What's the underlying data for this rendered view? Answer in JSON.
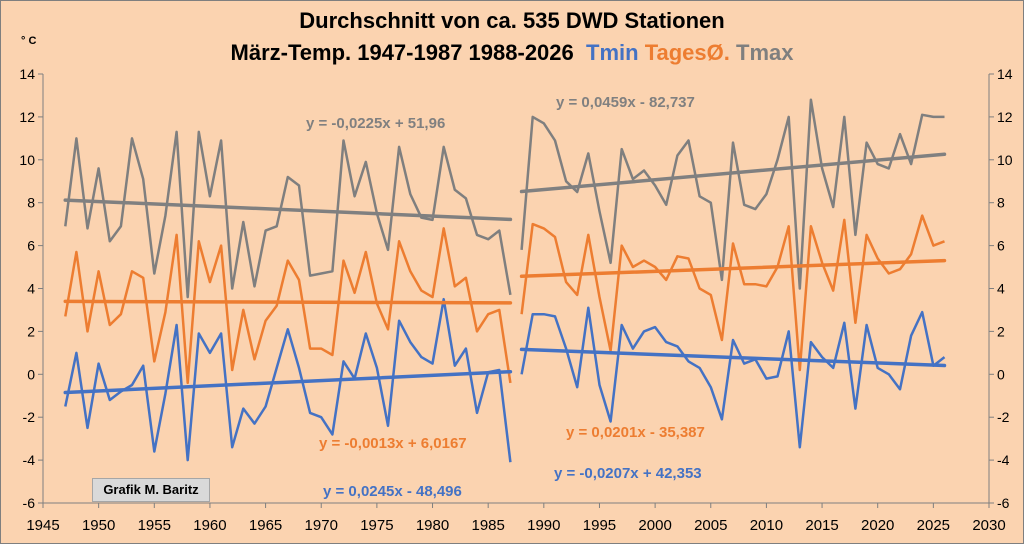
{
  "title": "Durchschnitt von ca. 535 DWD Stationen",
  "subtitle": {
    "lead": "März-Temp. 1947-1987 1988-2026",
    "tmin": "Tmin",
    "mean": "TagesØ.",
    "tmax": "Tmax"
  },
  "credit": "Grafik M. Baritz",
  "colors": {
    "tmin": "#4472c4",
    "mean": "#ed7d31",
    "tmax": "#7f7f7f",
    "background": "#fbd3b0",
    "trend": "#808080"
  },
  "chart_data": {
    "type": "line",
    "ylabel": "° C",
    "xlim": [
      1945,
      2030
    ],
    "ylim": [
      -6,
      14
    ],
    "x_ticks": [
      1945,
      1950,
      1955,
      1960,
      1965,
      1970,
      1975,
      1980,
      1985,
      1990,
      1995,
      2000,
      2005,
      2010,
      2015,
      2020,
      2025,
      2030
    ],
    "y_ticks": [
      -6,
      -4,
      -2,
      0,
      2,
      4,
      6,
      8,
      10,
      12,
      14
    ],
    "grid": false,
    "series": [
      {
        "name": "Tmax",
        "key": "tmax",
        "x": [
          1947,
          1948,
          1949,
          1950,
          1951,
          1952,
          1953,
          1954,
          1955,
          1956,
          1957,
          1958,
          1959,
          1960,
          1961,
          1962,
          1963,
          1964,
          1965,
          1966,
          1967,
          1968,
          1969,
          1970,
          1971,
          1972,
          1973,
          1974,
          1975,
          1976,
          1977,
          1978,
          1979,
          1980,
          1981,
          1982,
          1983,
          1984,
          1985,
          1986,
          1987
        ],
        "values": [
          6.9,
          11.0,
          6.8,
          9.6,
          6.2,
          6.9,
          11.0,
          9.1,
          4.7,
          7.4,
          11.3,
          3.6,
          11.3,
          8.3,
          10.9,
          4.0,
          7.1,
          4.1,
          6.7,
          6.9,
          9.2,
          8.8,
          4.6,
          4.7,
          4.8,
          10.9,
          8.3,
          9.9,
          7.5,
          5.8,
          10.6,
          8.4,
          7.3,
          7.2,
          10.6,
          8.6,
          8.2,
          6.5,
          6.3,
          6.7,
          3.7
        ]
      },
      {
        "name": "Tmax",
        "key": "tmax",
        "x": [
          1988,
          1989,
          1990,
          1991,
          1992,
          1993,
          1994,
          1995,
          1996,
          1997,
          1998,
          1999,
          2000,
          2001,
          2002,
          2003,
          2004,
          2005,
          2006,
          2007,
          2008,
          2009,
          2010,
          2011,
          2012,
          2013,
          2014,
          2015,
          2016,
          2017,
          2018,
          2019,
          2020,
          2021,
          2022,
          2023,
          2024,
          2025,
          2026
        ],
        "values": [
          5.8,
          12.0,
          11.7,
          10.9,
          9.0,
          8.5,
          10.3,
          7.6,
          5.2,
          10.5,
          9.1,
          9.5,
          8.8,
          7.9,
          10.2,
          10.9,
          8.3,
          8.0,
          4.4,
          10.8,
          7.9,
          7.7,
          8.4,
          10.0,
          12.0,
          4.0,
          12.8,
          9.6,
          7.8,
          12.0,
          6.5,
          10.8,
          9.8,
          9.6,
          11.2,
          9.8,
          12.1,
          12.0,
          12.0
        ]
      },
      {
        "name": "TagesØ.",
        "key": "mean",
        "x": [
          1947,
          1948,
          1949,
          1950,
          1951,
          1952,
          1953,
          1954,
          1955,
          1956,
          1957,
          1958,
          1959,
          1960,
          1961,
          1962,
          1963,
          1964,
          1965,
          1966,
          1967,
          1968,
          1969,
          1970,
          1971,
          1972,
          1973,
          1974,
          1975,
          1976,
          1977,
          1978,
          1979,
          1980,
          1981,
          1982,
          1983,
          1984,
          1985,
          1986,
          1987
        ],
        "values": [
          2.7,
          5.7,
          2.0,
          4.8,
          2.3,
          2.8,
          4.8,
          4.5,
          0.6,
          2.9,
          6.5,
          -0.4,
          6.2,
          4.3,
          6.0,
          0.2,
          3.0,
          0.7,
          2.5,
          3.2,
          5.3,
          4.4,
          1.2,
          1.2,
          0.9,
          5.3,
          3.8,
          5.7,
          3.3,
          2.1,
          6.2,
          4.8,
          3.9,
          3.6,
          6.8,
          4.1,
          4.5,
          2.0,
          2.8,
          3.0,
          -0.4
        ]
      },
      {
        "name": "TagesØ.",
        "key": "mean",
        "x": [
          1988,
          1989,
          1990,
          1991,
          1992,
          1993,
          1994,
          1995,
          1996,
          1997,
          1998,
          1999,
          2000,
          2001,
          2002,
          2003,
          2004,
          2005,
          2006,
          2007,
          2008,
          2009,
          2010,
          2011,
          2012,
          2013,
          2014,
          2015,
          2016,
          2017,
          2018,
          2019,
          2020,
          2021,
          2022,
          2023,
          2024,
          2025,
          2026
        ],
        "values": [
          2.8,
          7.0,
          6.8,
          6.4,
          4.3,
          3.7,
          6.5,
          3.6,
          1.1,
          6.0,
          5.0,
          5.3,
          5.0,
          4.4,
          5.5,
          5.4,
          4.0,
          3.7,
          1.6,
          6.1,
          4.2,
          4.2,
          4.1,
          5.0,
          6.9,
          0.2,
          6.9,
          5.2,
          3.9,
          7.2,
          2.4,
          6.5,
          5.4,
          4.7,
          4.9,
          5.6,
          7.4,
          6.0,
          6.2
        ]
      },
      {
        "name": "Tmin",
        "key": "tmin",
        "x": [
          1947,
          1948,
          1949,
          1950,
          1951,
          1952,
          1953,
          1954,
          1955,
          1956,
          1957,
          1958,
          1959,
          1960,
          1961,
          1962,
          1963,
          1964,
          1965,
          1966,
          1967,
          1968,
          1969,
          1970,
          1971,
          1972,
          1973,
          1974,
          1975,
          1976,
          1977,
          1978,
          1979,
          1980,
          1981,
          1982,
          1983,
          1984,
          1985,
          1986,
          1987
        ],
        "values": [
          -1.5,
          1.0,
          -2.5,
          0.5,
          -1.2,
          -0.8,
          -0.5,
          0.4,
          -3.6,
          -0.9,
          2.3,
          -4.0,
          1.9,
          1.0,
          1.9,
          -3.4,
          -1.6,
          -2.3,
          -1.5,
          0.3,
          2.1,
          0.3,
          -1.8,
          -2.0,
          -2.8,
          0.6,
          -0.2,
          1.9,
          0.3,
          -2.4,
          2.5,
          1.5,
          0.8,
          0.5,
          3.5,
          0.4,
          1.2,
          -1.8,
          0.1,
          0.2,
          -4.1
        ]
      },
      {
        "name": "Tmin",
        "key": "tmin",
        "x": [
          1988,
          1989,
          1990,
          1991,
          1992,
          1993,
          1994,
          1995,
          1996,
          1997,
          1998,
          1999,
          2000,
          2001,
          2002,
          2003,
          2004,
          2005,
          2006,
          2007,
          2008,
          2009,
          2010,
          2011,
          2012,
          2013,
          2014,
          2015,
          2016,
          2017,
          2018,
          2019,
          2020,
          2021,
          2022,
          2023,
          2024,
          2025,
          2026
        ],
        "values": [
          0.0,
          2.8,
          2.8,
          2.7,
          1.2,
          -0.6,
          3.1,
          -0.5,
          -2.2,
          2.3,
          1.2,
          2.0,
          2.2,
          1.5,
          1.3,
          0.6,
          0.3,
          -0.6,
          -2.1,
          1.6,
          0.5,
          0.7,
          -0.2,
          -0.1,
          2.0,
          -3.4,
          1.5,
          0.8,
          0.3,
          2.4,
          -1.6,
          2.3,
          0.3,
          0.0,
          -0.7,
          1.8,
          2.9,
          0.4,
          0.8
        ]
      }
    ],
    "trendlines": [
      {
        "key": "tmax",
        "x": [
          1947,
          1987
        ],
        "y": [
          8.12,
          7.22
        ],
        "label": "y = -0,0225x + 51,96"
      },
      {
        "key": "tmax",
        "x": [
          1988,
          2026
        ],
        "y": [
          8.52,
          10.26
        ],
        "label": "y = 0,0459x - 82,737"
      },
      {
        "key": "mean",
        "x": [
          1947,
          1987
        ],
        "y": [
          3.4,
          3.33
        ],
        "label": "y = -0,0013x + 6,0167"
      },
      {
        "key": "mean",
        "x": [
          1988,
          2026
        ],
        "y": [
          4.57,
          5.3
        ],
        "label": "y = 0,0201x - 35,387"
      },
      {
        "key": "tmin",
        "x": [
          1947,
          1987
        ],
        "y": [
          -0.85,
          0.12
        ],
        "label": "y = 0,0245x - 48,496"
      },
      {
        "key": "tmin",
        "x": [
          1988,
          2026
        ],
        "y": [
          1.16,
          0.41
        ],
        "label": "y = -0,0207x + 42,353"
      }
    ]
  }
}
